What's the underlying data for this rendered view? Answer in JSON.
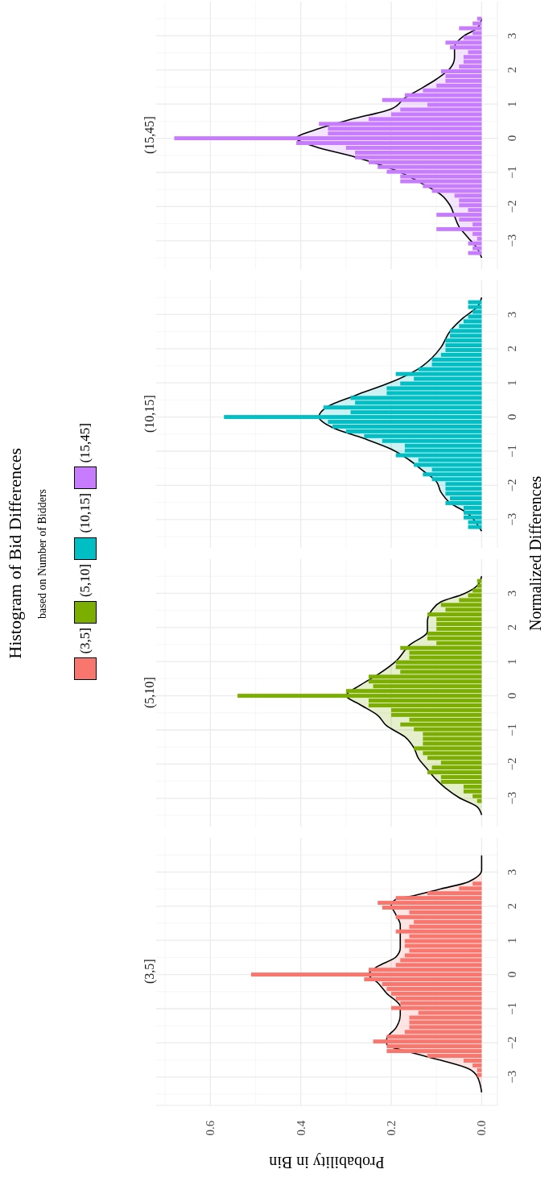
{
  "chart_data": [
    {
      "type": "other",
      "title": "Histogram of Bid Differences",
      "subtitle": "based on Number of Bidders",
      "annotations": [
        "Normalized Differences"
      ]
    },
    {
      "type": "histogram",
      "orientation": "horizontal",
      "title": "(15,45]",
      "legend": "left",
      "grid": true,
      "tick_labels": "y",
      "xlim": [
        0.72,
        -0.035
      ],
      "xticks": [
        0,
        0.2,
        0.4,
        0.6
      ],
      "ylim": [
        -3.83,
        4.0
      ],
      "yticks": [
        {
          "value": -3,
          "label": "−3"
        },
        {
          "value": -2,
          "label": "−2"
        },
        {
          "value": -1,
          "label": "−1"
        },
        0,
        1,
        2,
        3
      ],
      "bins": [
        -3.57,
        -3.43,
        -3.29,
        -3.15,
        -3.01,
        -2.87,
        -2.73,
        -2.59,
        -2.45,
        -2.31,
        -2.17,
        -2.03,
        -1.89,
        -1.75,
        -1.61,
        -1.47,
        -1.33,
        -1.19,
        -1.05,
        -0.91,
        -0.77,
        -0.63,
        -0.49,
        -0.35,
        -0.21,
        -0.07,
        0.07,
        0.21,
        0.35,
        0.49,
        0.63,
        0.77,
        0.91,
        1.05,
        1.19,
        1.33,
        1.47,
        1.61,
        1.75,
        1.89,
        2.03,
        2.17,
        2.31,
        2.45,
        2.59,
        2.73,
        2.87,
        3.01,
        3.15,
        3.29,
        3.43,
        3.57
      ],
      "series": [
        {
          "type": "histogram",
          "name": "(15,45]",
          "color": "#c77cff",
          "values": [
            0,
            0.03,
            0.02,
            0.03,
            0.01,
            0.02,
            0.1,
            0.02,
            0.05,
            0.1,
            0.03,
            0.05,
            0.05,
            0.06,
            0.11,
            0.13,
            0.18,
            0.18,
            0.21,
            0.23,
            0.25,
            0.28,
            0.28,
            0.3,
            0.41,
            0.68,
            0.34,
            0.34,
            0.36,
            0.25,
            0.2,
            0.18,
            0.12,
            0.22,
            0.17,
            0.13,
            0.1,
            0.08,
            0.08,
            0.09,
            0.05,
            0.04,
            0.04,
            0.03,
            0.07,
            0.08,
            0.04,
            0.02,
            0.05,
            0.02,
            0.01
          ]
        },
        {
          "type": "area",
          "color": "#000000",
          "x": [
            -3.5,
            -3.22,
            -2.91,
            -2.59,
            -2.28,
            -1.96,
            -1.65,
            -1.34,
            -0.94,
            -0.55,
            -0.24,
            0,
            0.24,
            0.55,
            0.86,
            1.18,
            1.41,
            1.73,
            2.04,
            2.36,
            2.67,
            2.99,
            3.22,
            3.5
          ],
          "values": [
            0,
            0.01,
            0.03,
            0.05,
            0.06,
            0.07,
            0.09,
            0.13,
            0.19,
            0.28,
            0.37,
            0.41,
            0.37,
            0.29,
            0.2,
            0.17,
            0.14,
            0.1,
            0.07,
            0.06,
            0.06,
            0.04,
            0.01,
            0
          ]
        }
      ]
    },
    {
      "type": "histogram",
      "orientation": "horizontal",
      "title": "(10,15]",
      "legend": "left",
      "grid": true,
      "tick_labels": "y",
      "xlim": [
        0.72,
        -0.035
      ],
      "xticks": [
        0,
        0.2,
        0.4,
        0.6
      ],
      "ylim": [
        -3.83,
        4.0
      ],
      "yticks": [
        {
          "value": -3,
          "label": "−3"
        },
        {
          "value": -2,
          "label": "−2"
        },
        {
          "value": -1,
          "label": "−1"
        },
        0,
        1,
        2,
        3
      ],
      "bins": [
        -3.57,
        -3.43,
        -3.29,
        -3.15,
        -3.01,
        -2.87,
        -2.73,
        -2.59,
        -2.45,
        -2.31,
        -2.17,
        -2.03,
        -1.89,
        -1.75,
        -1.61,
        -1.47,
        -1.33,
        -1.19,
        -1.05,
        -0.91,
        -0.77,
        -0.63,
        -0.49,
        -0.35,
        -0.21,
        -0.07,
        0.07,
        0.21,
        0.35,
        0.49,
        0.63,
        0.77,
        0.91,
        1.05,
        1.19,
        1.33,
        1.47,
        1.61,
        1.75,
        1.89,
        2.03,
        2.17,
        2.31,
        2.45,
        2.59,
        2.73,
        2.87,
        3.01,
        3.15,
        3.29,
        3.43,
        3.57
      ],
      "series": [
        {
          "type": "histogram",
          "name": "(10,15]",
          "color": "#00bfc4",
          "values": [
            0,
            0,
            0.03,
            0.03,
            0.04,
            0.04,
            0.04,
            0.08,
            0.07,
            0.08,
            0.08,
            0.08,
            0.11,
            0.13,
            0.11,
            0.15,
            0.14,
            0.19,
            0.17,
            0.17,
            0.22,
            0.26,
            0.3,
            0.33,
            0.34,
            0.57,
            0.29,
            0.35,
            0.28,
            0.29,
            0.21,
            0.21,
            0.18,
            0.15,
            0.19,
            0.14,
            0.11,
            0.11,
            0.09,
            0.08,
            0.08,
            0.08,
            0.07,
            0.07,
            0.05,
            0.04,
            0.03,
            0.02,
            0.03,
            0.03,
            0
          ]
        },
        {
          "type": "area",
          "color": "#000000",
          "x": [
            -3.34,
            -3.14,
            -2.83,
            -2.51,
            -2.2,
            -1.89,
            -1.57,
            -1.26,
            -0.94,
            -0.63,
            -0.31,
            0,
            0.31,
            0.63,
            1.02,
            1.41,
            1.73,
            2.04,
            2.51,
            2.91,
            3.22,
            3.5
          ],
          "values": [
            0,
            0.01,
            0.03,
            0.07,
            0.09,
            0.1,
            0.13,
            0.16,
            0.2,
            0.26,
            0.33,
            0.36,
            0.34,
            0.28,
            0.2,
            0.14,
            0.11,
            0.09,
            0.07,
            0.04,
            0.01,
            0
          ]
        }
      ]
    },
    {
      "type": "histogram",
      "orientation": "horizontal",
      "title": "(5,10]",
      "legend": "left",
      "grid": true,
      "tick_labels": "y",
      "xlim": [
        0.72,
        -0.035
      ],
      "xticks": [
        0,
        0.2,
        0.4,
        0.6
      ],
      "ylim": [
        -3.83,
        4.0
      ],
      "yticks": [
        {
          "value": -3,
          "label": "−3"
        },
        {
          "value": -2,
          "label": "−2"
        },
        {
          "value": -1,
          "label": "−1"
        },
        0,
        1,
        2,
        3
      ],
      "bins": [
        -3.57,
        -3.43,
        -3.29,
        -3.15,
        -3.01,
        -2.87,
        -2.73,
        -2.59,
        -2.45,
        -2.31,
        -2.17,
        -2.03,
        -1.89,
        -1.75,
        -1.61,
        -1.47,
        -1.33,
        -1.19,
        -1.05,
        -0.91,
        -0.77,
        -0.63,
        -0.49,
        -0.35,
        -0.21,
        -0.07,
        0.07,
        0.21,
        0.35,
        0.49,
        0.63,
        0.77,
        0.91,
        1.05,
        1.19,
        1.33,
        1.47,
        1.61,
        1.75,
        1.89,
        2.03,
        2.17,
        2.31,
        2.45,
        2.59,
        2.73,
        2.87,
        3.01,
        3.15,
        3.29,
        3.43,
        3.57
      ],
      "series": [
        {
          "type": "histogram",
          "name": "(5,10]",
          "color": "#7cae00",
          "values": [
            0,
            0,
            0,
            0.01,
            0.02,
            0.04,
            0.04,
            0.09,
            0.09,
            0.12,
            0.11,
            0.09,
            0.12,
            0.13,
            0.15,
            0.13,
            0.13,
            0.13,
            0.15,
            0.18,
            0.16,
            0.2,
            0.2,
            0.25,
            0.25,
            0.54,
            0.3,
            0.24,
            0.25,
            0.25,
            0.18,
            0.19,
            0.19,
            0.16,
            0.16,
            0.18,
            0.1,
            0.12,
            0.12,
            0.1,
            0.1,
            0.1,
            0.12,
            0.08,
            0.09,
            0.05,
            0.03,
            0.02,
            0.01,
            0.01,
            0
          ]
        },
        {
          "type": "area",
          "color": "#000000",
          "x": [
            -3.49,
            -3.25,
            -2.98,
            -2.7,
            -2.46,
            -2.15,
            -1.83,
            -1.52,
            -1.2,
            -0.88,
            -0.57,
            -0.25,
            0,
            0.3,
            0.62,
            1.01,
            1.48,
            1.88,
            2.19,
            2.51,
            2.75,
            2.98,
            3.22,
            3.5
          ],
          "values": [
            0,
            0.01,
            0.05,
            0.08,
            0.1,
            0.12,
            0.14,
            0.15,
            0.17,
            0.21,
            0.23,
            0.27,
            0.3,
            0.27,
            0.23,
            0.19,
            0.16,
            0.12,
            0.12,
            0.11,
            0.09,
            0.04,
            0.01,
            0
          ]
        }
      ]
    },
    {
      "type": "histogram",
      "orientation": "horizontal",
      "title": "(3,5]",
      "xlabel": "Probability in Bin",
      "legend": "left",
      "grid": true,
      "xlim": [
        0.72,
        -0.035
      ],
      "xticks": [
        {
          "value": 0,
          "label": "0.0"
        },
        {
          "value": 0.2,
          "label": "0.2"
        },
        {
          "value": 0.4,
          "label": "0.4"
        },
        {
          "value": 0.6,
          "label": "0.6"
        }
      ],
      "ylim": [
        -3.83,
        4.0
      ],
      "yticks": [
        {
          "value": -3,
          "label": "−3"
        },
        {
          "value": -2,
          "label": "−2"
        },
        {
          "value": -1,
          "label": "−1"
        },
        0,
        1,
        2,
        3
      ],
      "bins": [
        -3.57,
        -3.43,
        -3.29,
        -3.15,
        -3.01,
        -2.87,
        -2.73,
        -2.59,
        -2.45,
        -2.31,
        -2.17,
        -2.03,
        -1.89,
        -1.75,
        -1.61,
        -1.47,
        -1.33,
        -1.19,
        -1.05,
        -0.91,
        -0.77,
        -0.63,
        -0.49,
        -0.35,
        -0.21,
        -0.07,
        0.07,
        0.21,
        0.35,
        0.49,
        0.63,
        0.77,
        0.91,
        1.05,
        1.19,
        1.33,
        1.47,
        1.61,
        1.75,
        1.89,
        2.03,
        2.17,
        2.31,
        2.45,
        2.59,
        2.73,
        2.87,
        3.01,
        3.15,
        3.29,
        3.43,
        3.57
      ],
      "series": [
        {
          "type": "histogram",
          "name": "(3,5]",
          "color": "#f8766d",
          "values": [
            0,
            0,
            0,
            0,
            0.01,
            0.01,
            0.02,
            0.04,
            0.12,
            0.21,
            0.21,
            0.24,
            0.21,
            0.17,
            0.16,
            0.16,
            0.16,
            0.14,
            0.2,
            0.18,
            0.19,
            0.2,
            0.21,
            0.22,
            0.26,
            0.51,
            0.25,
            0.19,
            0.18,
            0.17,
            0.16,
            0.17,
            0.17,
            0.16,
            0.19,
            0.16,
            0.15,
            0.19,
            0.16,
            0.22,
            0.23,
            0.19,
            0.12,
            0.05,
            0.02,
            0,
            0,
            0,
            0,
            0,
            0
          ]
        },
        {
          "type": "area",
          "color": "#000000",
          "x": [
            -3.45,
            -2.98,
            -2.75,
            -2.51,
            -2.27,
            -2.04,
            -1.88,
            -1.57,
            -1.18,
            -0.94,
            -0.55,
            -0.24,
            0,
            0.24,
            0.51,
            0.78,
            1.18,
            1.45,
            1.76,
            2.04,
            2.2,
            2.31,
            2.51,
            2.71,
            3.06,
            3.49
          ],
          "values": [
            0,
            0.01,
            0.03,
            0.09,
            0.16,
            0.21,
            0.21,
            0.19,
            0.18,
            0.18,
            0.21,
            0.23,
            0.25,
            0.23,
            0.19,
            0.18,
            0.18,
            0.18,
            0.19,
            0.2,
            0.19,
            0.15,
            0.09,
            0.03,
            0,
            0
          ]
        }
      ]
    }
  ]
}
